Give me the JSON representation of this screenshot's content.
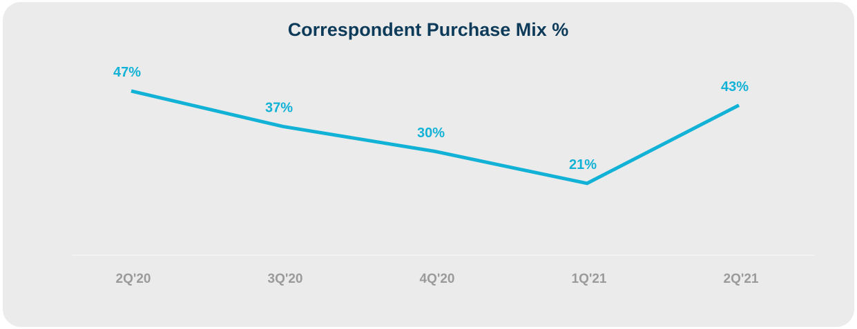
{
  "chart_data": {
    "type": "line",
    "title": "Correspondent Purchase Mix %",
    "categories": [
      "2Q'20",
      "3Q'20",
      "4Q'20",
      "1Q'21",
      "2Q'21"
    ],
    "values": [
      47,
      37,
      30,
      21,
      43
    ],
    "value_labels": [
      "47%",
      "37%",
      "30%",
      "21%",
      "43%"
    ],
    "color": "#12b2d6"
  }
}
